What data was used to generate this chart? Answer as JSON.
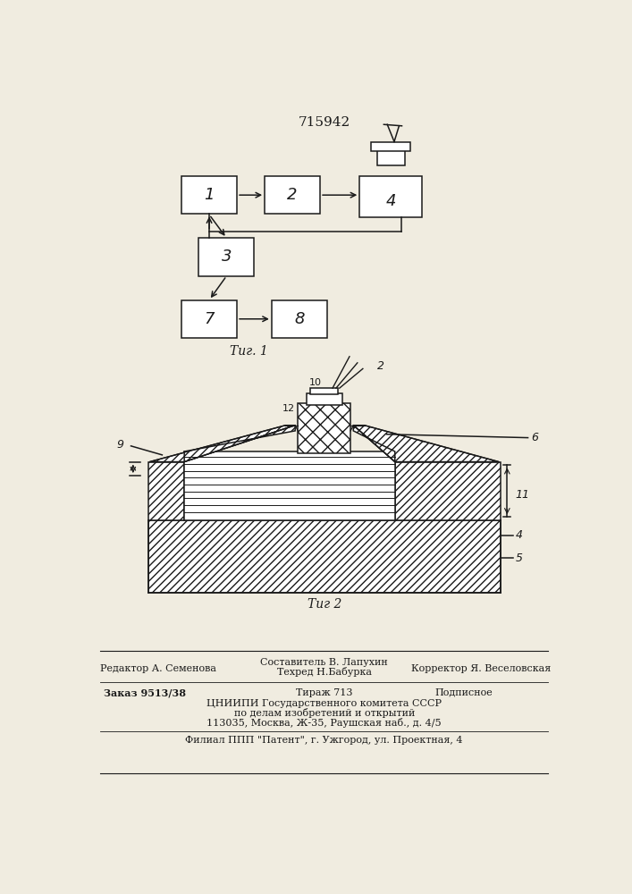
{
  "title": "715942",
  "fig1_label": "Τиг. 1",
  "fig2_label": "Τиг 2",
  "bg_color": "#f0ece0",
  "line_color": "#1a1a1a"
}
